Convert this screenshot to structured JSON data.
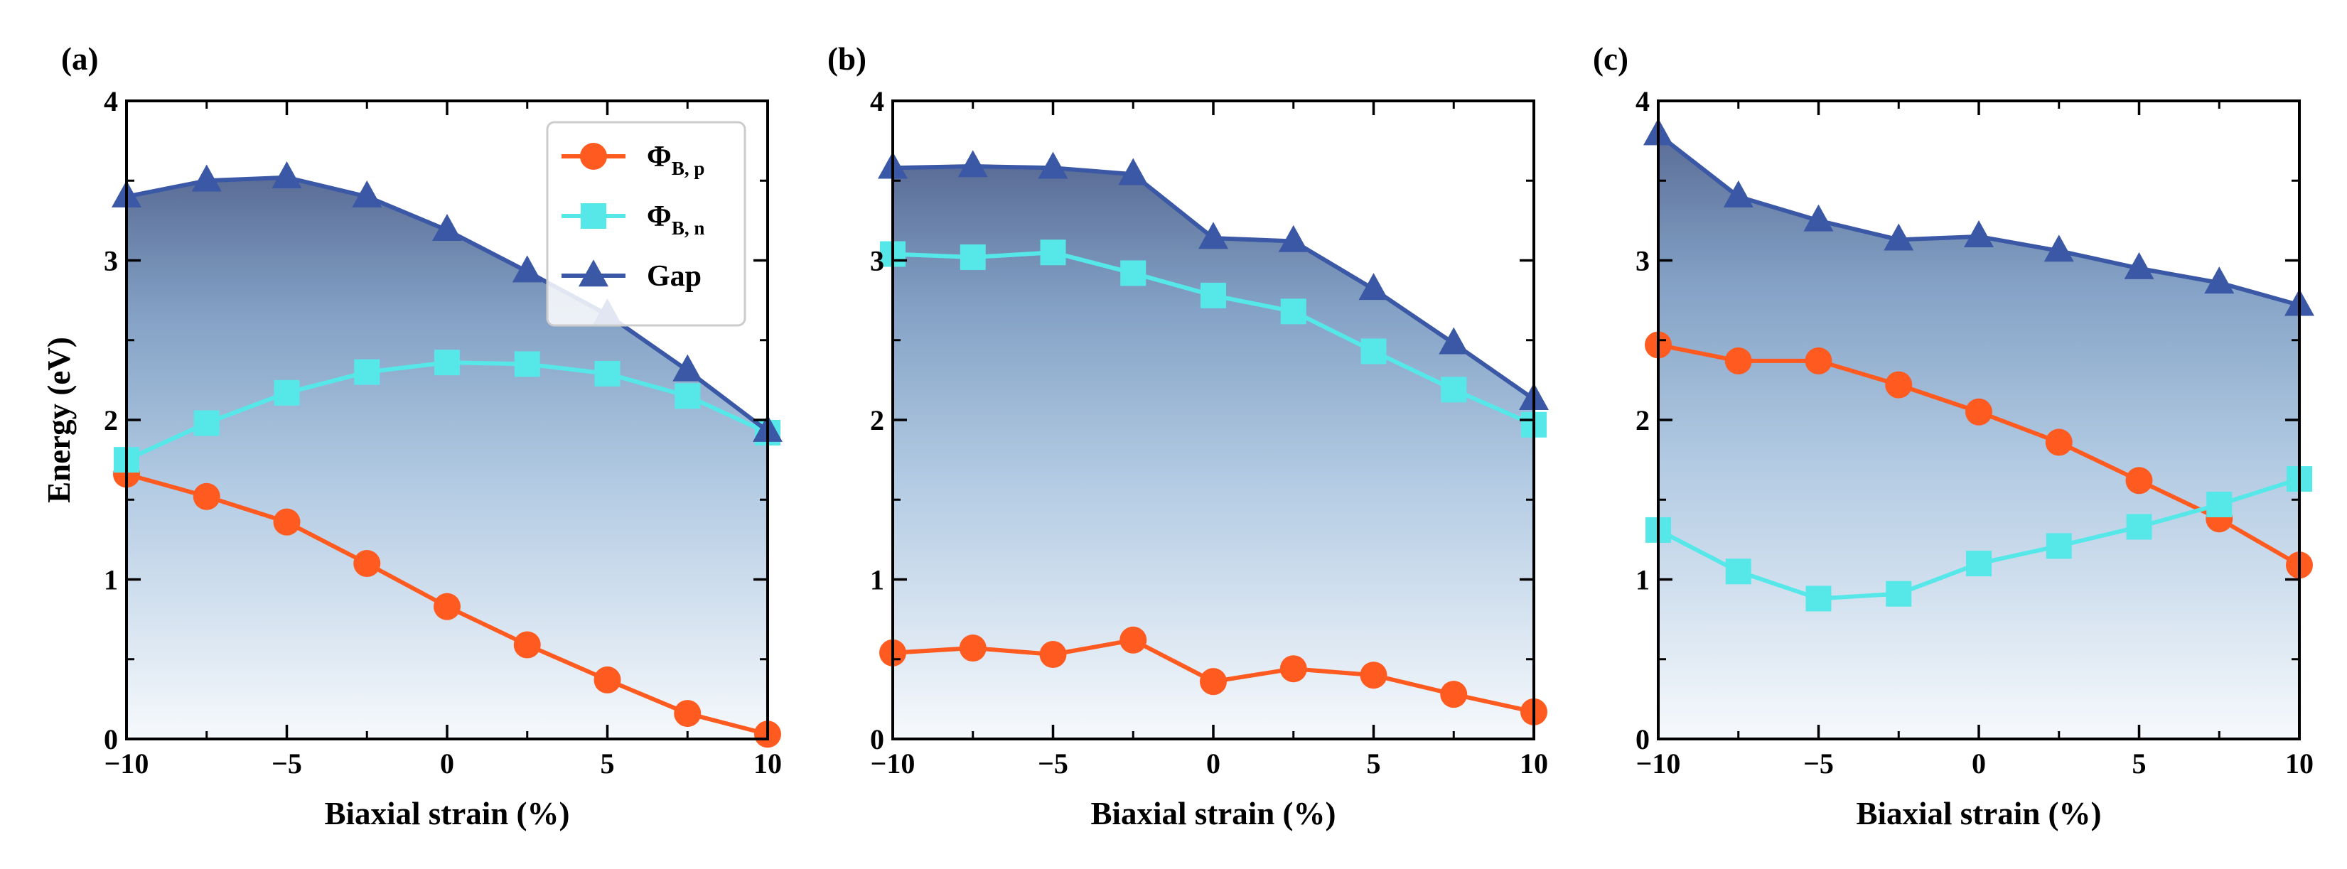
{
  "chart_data": [
    {
      "type": "line",
      "panel_label": "(a)",
      "xlabel": "Biaxial strain (%)",
      "ylabel": "Energy (eV)",
      "xlim": [
        -10,
        10
      ],
      "ylim": [
        0,
        4
      ],
      "xticks": [
        -10,
        -5,
        0,
        5,
        10
      ],
      "yticks": [
        0,
        1,
        2,
        3,
        4
      ],
      "xtick_labels": [
        "−10",
        "−5",
        "0",
        "5",
        "10"
      ],
      "ytick_labels": [
        "0",
        "1",
        "2",
        "3",
        "4"
      ],
      "x": [
        -10,
        -7.5,
        -5,
        -2.5,
        0,
        2.5,
        5,
        7.5,
        10
      ],
      "series": [
        {
          "name": "ΦB, p",
          "key": "phi_bp",
          "color": "#ff5a1f",
          "marker": "circle",
          "values": [
            1.66,
            1.52,
            1.36,
            1.1,
            0.83,
            0.59,
            0.37,
            0.16,
            0.03
          ]
        },
        {
          "name": "ΦB, n",
          "key": "phi_bn",
          "color": "#56e8e8",
          "marker": "square",
          "values": [
            1.75,
            1.98,
            2.17,
            2.3,
            2.36,
            2.35,
            2.29,
            2.15,
            1.92
          ]
        },
        {
          "name": "Gap",
          "key": "gap",
          "color": "#3b58a6",
          "marker": "triangle",
          "values": [
            3.4,
            3.5,
            3.52,
            3.4,
            3.19,
            2.93,
            2.66,
            2.31,
            1.93
          ]
        }
      ],
      "legend": {
        "position": "top-right",
        "entries": [
          {
            "main": "Φ",
            "sub": "B, p",
            "key": "phi_bp"
          },
          {
            "main": "Φ",
            "sub": "B, n",
            "key": "phi_bn"
          },
          {
            "main": "Gap",
            "sub": "",
            "key": "gap"
          }
        ]
      }
    },
    {
      "type": "line",
      "panel_label": "(b)",
      "xlabel": "Biaxial strain (%)",
      "ylabel": "",
      "xlim": [
        -10,
        10
      ],
      "ylim": [
        0,
        4
      ],
      "xticks": [
        -10,
        -5,
        0,
        5,
        10
      ],
      "yticks": [
        0,
        1,
        2,
        3,
        4
      ],
      "xtick_labels": [
        "−10",
        "−5",
        "0",
        "5",
        "10"
      ],
      "ytick_labels": [
        "0",
        "1",
        "2",
        "3",
        "4"
      ],
      "x": [
        -10,
        -7.5,
        -5,
        -2.5,
        0,
        2.5,
        5,
        7.5,
        10
      ],
      "series": [
        {
          "name": "ΦB, p",
          "key": "phi_bp",
          "color": "#ff5a1f",
          "marker": "circle",
          "values": [
            0.54,
            0.57,
            0.53,
            0.62,
            0.36,
            0.44,
            0.4,
            0.28,
            0.17
          ]
        },
        {
          "name": "ΦB, n",
          "key": "phi_bn",
          "color": "#56e8e8",
          "marker": "square",
          "values": [
            3.04,
            3.02,
            3.05,
            2.92,
            2.78,
            2.68,
            2.43,
            2.19,
            1.97
          ]
        },
        {
          "name": "Gap",
          "key": "gap",
          "color": "#3b58a6",
          "marker": "triangle",
          "values": [
            3.58,
            3.59,
            3.58,
            3.54,
            3.14,
            3.12,
            2.82,
            2.48,
            2.13
          ]
        }
      ]
    },
    {
      "type": "line",
      "panel_label": "(c)",
      "xlabel": "Biaxial strain (%)",
      "ylabel": "",
      "xlim": [
        -10,
        10
      ],
      "ylim": [
        0,
        4
      ],
      "xticks": [
        -10,
        -5,
        0,
        5,
        10
      ],
      "yticks": [
        0,
        1,
        2,
        3,
        4
      ],
      "xtick_labels": [
        "−10",
        "−5",
        "0",
        "5",
        "10"
      ],
      "ytick_labels": [
        "0",
        "1",
        "2",
        "3",
        "4"
      ],
      "x": [
        -10,
        -7.5,
        -5,
        -2.5,
        0,
        2.5,
        5,
        7.5,
        10
      ],
      "series": [
        {
          "name": "ΦB, p",
          "key": "phi_bp",
          "color": "#ff5a1f",
          "marker": "circle",
          "values": [
            2.47,
            2.37,
            2.37,
            2.22,
            2.05,
            1.86,
            1.62,
            1.38,
            1.09
          ]
        },
        {
          "name": "ΦB, n",
          "key": "phi_bn",
          "color": "#56e8e8",
          "marker": "square",
          "values": [
            1.31,
            1.05,
            0.88,
            0.91,
            1.1,
            1.21,
            1.33,
            1.47,
            1.63
          ]
        },
        {
          "name": "Gap",
          "key": "gap",
          "color": "#3b58a6",
          "marker": "triangle",
          "values": [
            3.79,
            3.4,
            3.25,
            3.13,
            3.15,
            3.06,
            2.95,
            2.86,
            2.72
          ]
        }
      ]
    }
  ]
}
